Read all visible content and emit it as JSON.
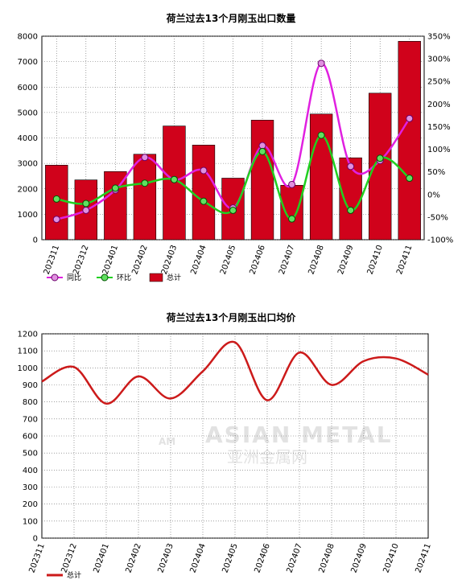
{
  "chart_data": [
    {
      "type": "bar",
      "title": "荷兰过去13个月刚玉出口数量",
      "categories": [
        "202311",
        "202312",
        "202401",
        "202402",
        "202403",
        "202404",
        "202405",
        "202406",
        "202407",
        "202408",
        "202409",
        "202410",
        "202411"
      ],
      "series": [
        {
          "name": "总计",
          "type": "bar",
          "axis": "left",
          "color": "#d0021b",
          "values": [
            2930,
            2350,
            2680,
            3360,
            4470,
            3720,
            2420,
            4700,
            2140,
            4940,
            3220,
            5760,
            7800
          ]
        },
        {
          "name": "同比",
          "type": "line",
          "axis": "right",
          "color": "#e020e0",
          "values": [
            -55,
            -35,
            10,
            82,
            33,
            53,
            -30,
            108,
            22,
            290,
            62,
            75,
            168
          ]
        },
        {
          "name": "环比",
          "type": "line",
          "axis": "right",
          "color": "#20d020",
          "values": [
            -10,
            -20,
            14,
            25,
            33,
            -15,
            -35,
            95,
            -54,
            131,
            -35,
            80,
            36
          ]
        }
      ],
      "ylim_left": [
        0,
        8000
      ],
      "yticks_left": [
        "0",
        "1000",
        "2000",
        "3000",
        "4000",
        "5000",
        "6000",
        "7000",
        "8000"
      ],
      "ylim_right": [
        -100,
        350
      ],
      "yticks_right": [
        "-100%",
        "-50%",
        "0%",
        "50%",
        "100%",
        "150%",
        "200%",
        "250%",
        "300%",
        "350%"
      ],
      "grid": true,
      "legend": "bottom-left",
      "legend_labels": [
        "同比",
        "环比",
        "总计"
      ]
    },
    {
      "type": "line",
      "title": "荷兰过去13个月刚玉出口均价",
      "categories": [
        "202311",
        "202312",
        "202401",
        "202402",
        "202403",
        "202404",
        "202405",
        "202406",
        "202407",
        "202408",
        "202409",
        "202410",
        "202411"
      ],
      "series": [
        {
          "name": "总计",
          "color": "#cc1a1a",
          "values": [
            920,
            1005,
            790,
            950,
            820,
            980,
            1150,
            810,
            1090,
            900,
            1040,
            1055,
            960
          ]
        }
      ],
      "ylim": [
        0,
        1200
      ],
      "yticks": [
        "0",
        "100",
        "200",
        "300",
        "400",
        "500",
        "600",
        "700",
        "800",
        "900",
        "1000",
        "1100",
        "1200"
      ],
      "grid": true,
      "legend": "bottom-left",
      "legend_labels": [
        "总计"
      ]
    }
  ],
  "watermark": {
    "en": "ASIAN METAL",
    "cn": "亚洲金属网",
    "badge": "AM"
  }
}
